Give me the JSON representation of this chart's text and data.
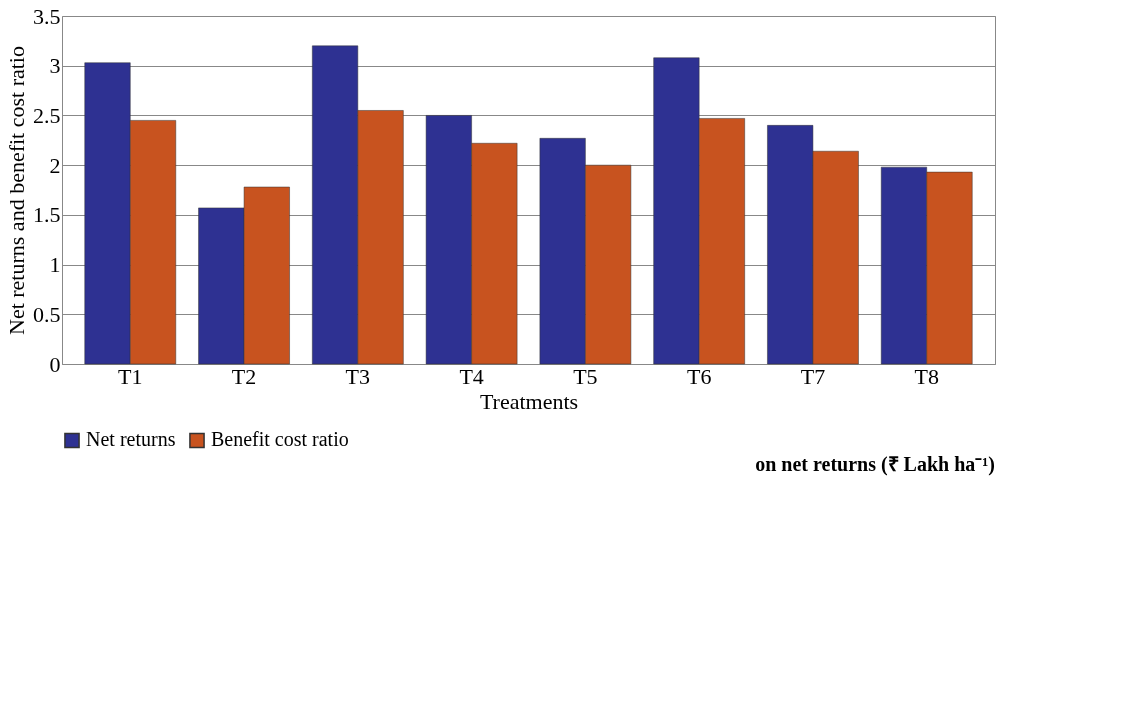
{
  "chart_data": {
    "type": "bar",
    "xlabel": "Treatments",
    "ylabel": "Net returns and benefit cost ratio",
    "categories": [
      "T1",
      "T2",
      "T3",
      "T4",
      "T5",
      "T6",
      "T7",
      "T8"
    ],
    "series": [
      {
        "name": "Net returns",
        "color": "#2e3192",
        "values": [
          3.03,
          1.57,
          3.2,
          2.5,
          2.27,
          3.08,
          2.4,
          1.98
        ]
      },
      {
        "name": "Benefit cost ratio",
        "color": "#c8531f",
        "values": [
          2.45,
          1.78,
          2.55,
          2.22,
          2.0,
          2.47,
          2.14,
          1.93
        ]
      }
    ],
    "ylim": [
      0,
      3.5
    ],
    "yticks": [
      0,
      0.5,
      1,
      1.5,
      2,
      2.5,
      3,
      3.5
    ],
    "grid": "y",
    "legend": "bottom",
    "annotations": [
      "on net returns (₹ Lakh ha⁻¹)"
    ]
  }
}
